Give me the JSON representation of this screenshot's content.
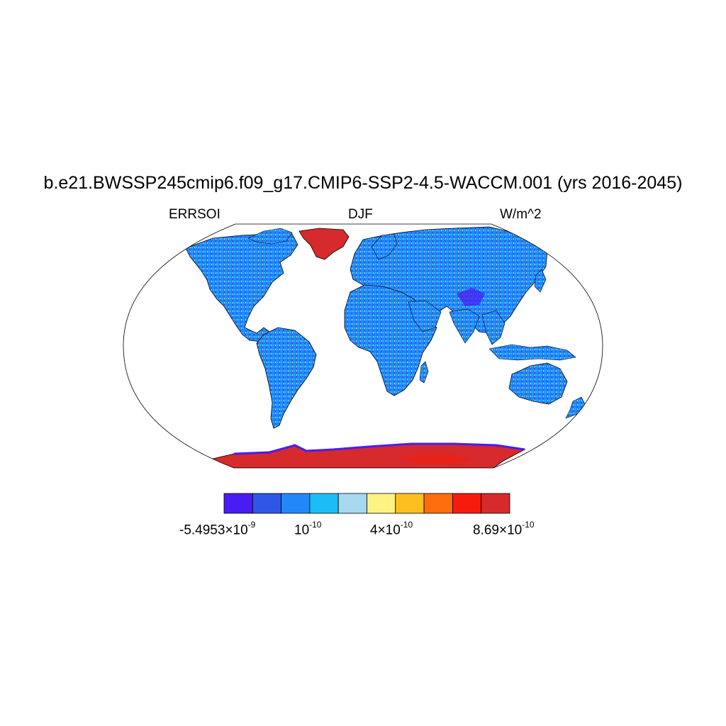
{
  "title": "b.e21.BWSSP245cmip6.f09_g17.CMIP6-SSP2-4.5-WACCM.001 (yrs 2016-2045)",
  "left_label": "ERRSOI",
  "center_label": "DJF",
  "right_label": "W/m^2",
  "colorbar": {
    "colors": [
      "#4a1cf4",
      "#2f57e6",
      "#2388f7",
      "#1abdf6",
      "#a6d8f0",
      "#fdf282",
      "#fdbf1f",
      "#fc6d0c",
      "#f71b0d",
      "#d62a2c"
    ],
    "labels": [
      {
        "mantissa": "-5.4953×10",
        "exponent": "-9"
      },
      {
        "mantissa": "10",
        "exponent": "-10"
      },
      {
        "mantissa": "4×10",
        "exponent": "-10"
      },
      {
        "mantissa": "8.69×10",
        "exponent": "-10"
      }
    ]
  },
  "map": {
    "projection": "Robinson",
    "field_colors": {
      "land_dominant": "#2388f7",
      "land_speckle": "#1abdf6",
      "land_dark": "#2f57e6",
      "land_light": "#a6d8f0",
      "ice_sheets": "#d62a2c",
      "ocean": "#ffffff",
      "coastline": "#000000"
    }
  }
}
